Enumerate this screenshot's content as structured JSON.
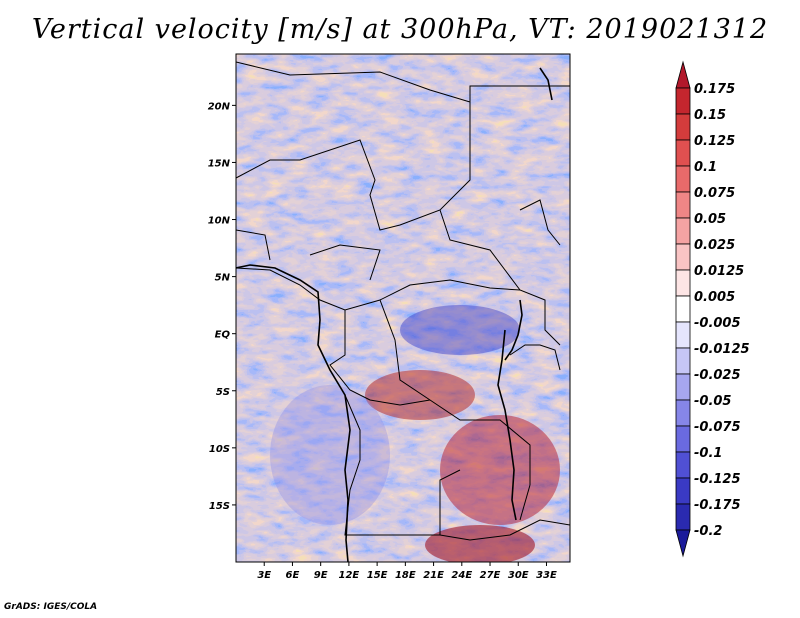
{
  "title": "Vertical velocity [m/s] at 300hPa, VT: 2019021312",
  "credit": "GrADS: IGES/COLA",
  "map": {
    "lat_labels": [
      "20N",
      "15N",
      "10N",
      "5N",
      "EQ",
      "5S",
      "10S",
      "15S"
    ],
    "lon_labels": [
      "3E",
      "6E",
      "9E",
      "12E",
      "15E",
      "18E",
      "21E",
      "24E",
      "27E",
      "30E",
      "33E"
    ],
    "lat_range": [
      -20,
      24.5
    ],
    "lon_range": [
      0,
      35.5
    ]
  },
  "colorbar": {
    "labels": [
      "0.175",
      "0.15",
      "0.125",
      "0.1",
      "0.075",
      "0.05",
      "0.025",
      "0.0125",
      "0.005",
      "-0.005",
      "-0.0125",
      "-0.025",
      "-0.05",
      "-0.075",
      "-0.1",
      "-0.125",
      "-0.175",
      "-0.2"
    ],
    "colors": [
      "#b2182b",
      "#c4262e",
      "#d43c3c",
      "#e05050",
      "#e86a6a",
      "#ef8686",
      "#f5a3a3",
      "#f9c4c4",
      "#fde5e5",
      "#ffffff",
      "#e5e5fd",
      "#c6c6f6",
      "#a6a6ef",
      "#8686e8",
      "#6a6ae0",
      "#5050d4",
      "#3a3ac4",
      "#2a2ab0",
      "#1b1b9a"
    ]
  },
  "legend_colors": {
    "positive_high": "#b2182b",
    "negative_low": "#1b1b9a",
    "background": "#ffffff"
  }
}
